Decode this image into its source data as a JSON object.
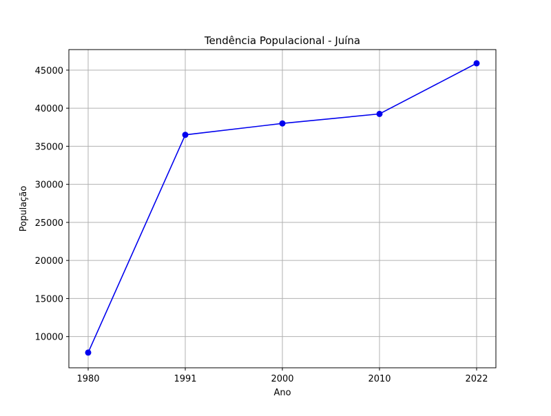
{
  "chart_data": {
    "type": "line",
    "title": "Tendência Populacional - Juína",
    "xlabel": "Ano",
    "ylabel": "População",
    "categories": [
      "1980",
      "1991",
      "2000",
      "2010",
      "2022"
    ],
    "series": [
      {
        "values": [
          7900,
          36500,
          38000,
          39250,
          45900
        ],
        "color": "#0000ee",
        "marker": "circle"
      }
    ],
    "yticks": [
      10000,
      15000,
      20000,
      25000,
      30000,
      35000,
      40000,
      45000
    ],
    "ylim": [
      5900,
      47700
    ],
    "grid": true
  }
}
